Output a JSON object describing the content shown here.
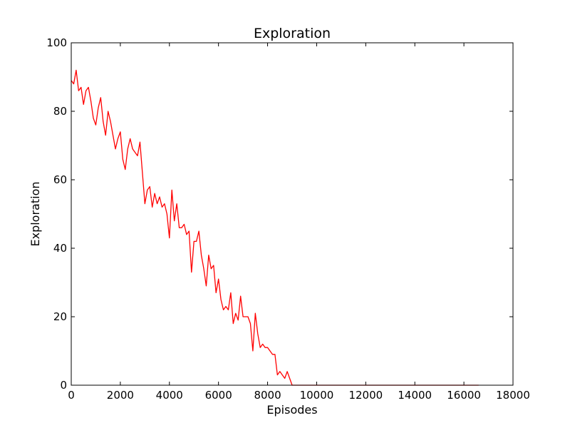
{
  "chart_data": {
    "type": "line",
    "title": "Exploration",
    "xlabel": "Episodes",
    "ylabel": "Exploration",
    "xlim": [
      0,
      18000
    ],
    "ylim": [
      0,
      100
    ],
    "xticks": [
      0,
      2000,
      4000,
      6000,
      8000,
      10000,
      12000,
      14000,
      16000,
      18000
    ],
    "yticks": [
      0,
      20,
      40,
      60,
      80,
      100
    ],
    "grid": false,
    "series": [
      {
        "color": "#ff0000",
        "x": [
          0,
          100,
          200,
          300,
          400,
          500,
          600,
          700,
          800,
          900,
          1000,
          1100,
          1200,
          1300,
          1400,
          1500,
          1600,
          1700,
          1800,
          1900,
          2000,
          2100,
          2200,
          2300,
          2400,
          2500,
          2600,
          2700,
          2800,
          2900,
          3000,
          3100,
          3200,
          3300,
          3400,
          3500,
          3600,
          3700,
          3800,
          3900,
          4000,
          4100,
          4200,
          4300,
          4400,
          4500,
          4600,
          4700,
          4800,
          4900,
          5000,
          5100,
          5200,
          5300,
          5400,
          5500,
          5600,
          5700,
          5800,
          5900,
          6000,
          6100,
          6200,
          6300,
          6400,
          6500,
          6600,
          6700,
          6800,
          6900,
          7000,
          7100,
          7200,
          7300,
          7400,
          7500,
          7600,
          7700,
          7800,
          7900,
          8000,
          8100,
          8200,
          8300,
          8400,
          8500,
          8600,
          8700,
          8800,
          8900,
          9000,
          9100,
          10000,
          11000,
          12000,
          13000,
          14000,
          15000,
          16000,
          16600
        ],
        "y": [
          89,
          88,
          92,
          86,
          87,
          82,
          86,
          87,
          83,
          78,
          76,
          81,
          84,
          77,
          73,
          80,
          77,
          73,
          69,
          72,
          74,
          66,
          63,
          69,
          72,
          69,
          68,
          67,
          71,
          62,
          53,
          57,
          58,
          52,
          56,
          53,
          55,
          52,
          53,
          50,
          43,
          57,
          48,
          53,
          46,
          46,
          47,
          44,
          45,
          33,
          42,
          42,
          45,
          38,
          34,
          29,
          38,
          34,
          35,
          27,
          31,
          25,
          22,
          23,
          22,
          27,
          18,
          21,
          19,
          26,
          20,
          20,
          20,
          18,
          10,
          21,
          15,
          11,
          12,
          11,
          11,
          10,
          9,
          9,
          3,
          4,
          3,
          2,
          4,
          2,
          0,
          0,
          0,
          0,
          0,
          0,
          0,
          0,
          0,
          0
        ]
      }
    ]
  }
}
